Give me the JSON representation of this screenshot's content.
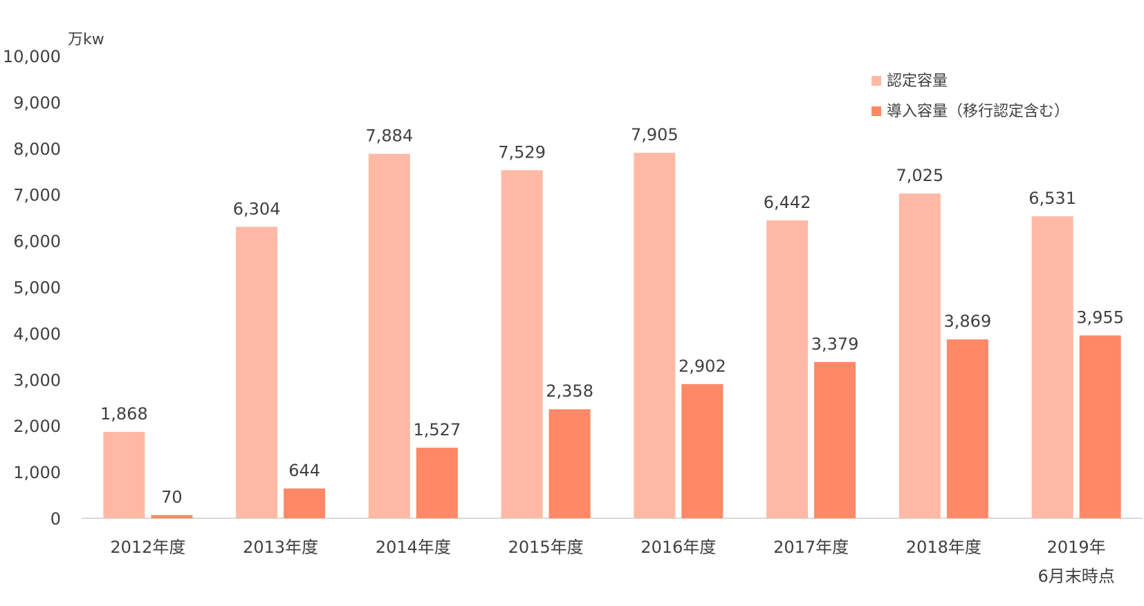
{
  "chart_data": {
    "type": "bar",
    "unit": "万kw",
    "categories": [
      [
        "2012年度"
      ],
      [
        "2013年度"
      ],
      [
        "2014年度"
      ],
      [
        "2015年度"
      ],
      [
        "2016年度"
      ],
      [
        "2017年度"
      ],
      [
        "2018年度"
      ],
      [
        "2019年",
        "6月末時点"
      ]
    ],
    "series": [
      {
        "name": "認定容量",
        "color": "#FFB9A5",
        "values": [
          1868,
          6304,
          7884,
          7529,
          7905,
          6442,
          7025,
          6531
        ]
      },
      {
        "name": "導入容量（移行認定含む）",
        "color": "#FF8866",
        "values": [
          70,
          644,
          1527,
          2358,
          2902,
          3379,
          3869,
          3955
        ]
      }
    ],
    "ylim": [
      0,
      10000
    ],
    "yticks": [
      0,
      1000,
      2000,
      3000,
      4000,
      5000,
      6000,
      7000,
      8000,
      9000,
      10000
    ],
    "grid": false,
    "legend_position": "top-right",
    "axis_color": "#D9D9D9",
    "text_color": "#404040"
  }
}
